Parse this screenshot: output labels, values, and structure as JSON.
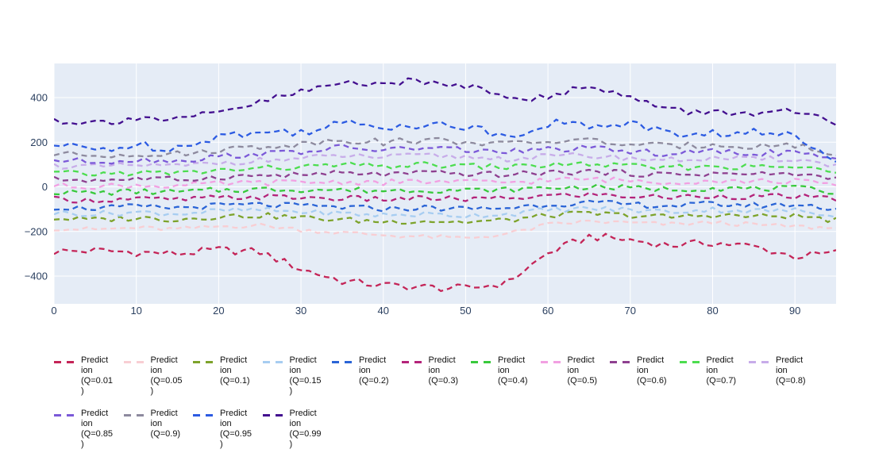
{
  "chart_data": {
    "type": "line",
    "title": "",
    "xlabel": "",
    "ylabel": "",
    "line_style": "dash",
    "plot_bg_color": "#e5ecf6",
    "grid_color": "#ffffff",
    "tick_label_color": "#2a3f5f",
    "legend_text_color": "#111111",
    "x_range": [
      0,
      95
    ],
    "y_range": [
      -524,
      553
    ],
    "x_tick_values": [
      0,
      10,
      20,
      30,
      40,
      50,
      60,
      70,
      80,
      90
    ],
    "x_tick_labels": [
      "0",
      "10",
      "20",
      "30",
      "40",
      "50",
      "60",
      "70",
      "80",
      "90"
    ],
    "y_tick_values": [
      400,
      200,
      0,
      -200,
      -400
    ],
    "y_tick_labels": [
      "400",
      "200",
      "0",
      "−200",
      "−400"
    ],
    "anchor_x_step": 5,
    "legend_row_split": 11,
    "series": [
      {
        "name": "Prediction (Q=0.01)",
        "label_lines": [
          "Predict",
          "ion",
          "(Q=0.01",
          ")"
        ],
        "color": "#c42457",
        "noise": 18,
        "anchors": [
          -290,
          -286,
          -293,
          -300,
          -283,
          -292,
          -368,
          -422,
          -441,
          -450,
          -456,
          -430,
          -298,
          -222,
          -238,
          -262,
          -250,
          -268,
          -312,
          -296
        ]
      },
      {
        "name": "Prediction (Q=0.05)",
        "label_lines": [
          "Predict",
          "ion",
          "(Q=0.05",
          ")"
        ],
        "color": "#f8ced3",
        "noise": 10,
        "anchors": [
          -186,
          -191,
          -184,
          -190,
          -178,
          -172,
          -192,
          -206,
          -216,
          -224,
          -230,
          -212,
          -170,
          -155,
          -162,
          -168,
          -160,
          -170,
          -178,
          -186
        ]
      },
      {
        "name": "Prediction (Q=0.1)",
        "label_lines": [
          "Predict",
          "ion",
          "(Q=0.1)"
        ],
        "color": "#7da32b",
        "noise": 13,
        "anchors": [
          -141,
          -148,
          -139,
          -146,
          -132,
          -128,
          -138,
          -148,
          -156,
          -152,
          -158,
          -150,
          -128,
          -120,
          -128,
          -136,
          -126,
          -133,
          -130,
          -150
        ]
      },
      {
        "name": "Prediction (Q=0.15)",
        "label_lines": [
          "Predict",
          "ion",
          "(Q=0.15",
          ")"
        ],
        "color": "#a7cdf1",
        "noise": 13,
        "anchors": [
          -116,
          -122,
          -114,
          -120,
          -108,
          -104,
          -112,
          -120,
          -127,
          -123,
          -128,
          -122,
          -104,
          -97,
          -104,
          -111,
          -102,
          -108,
          -106,
          -124
        ]
      },
      {
        "name": "Prediction (Q=0.2)",
        "label_lines": [
          "Predict",
          "ion",
          "(Q=0.2)"
        ],
        "color": "#2a64d6",
        "noise": 13,
        "anchors": [
          -91,
          -96,
          -89,
          -94,
          -84,
          -80,
          -86,
          -92,
          -98,
          -94,
          -99,
          -94,
          -78,
          -72,
          -79,
          -85,
          -77,
          -83,
          -80,
          -97
        ]
      },
      {
        "name": "Prediction (Q=0.3)",
        "label_lines": [
          "Predict",
          "ion",
          "(Q=0.3)"
        ],
        "color": "#b4237a",
        "noise": 13,
        "anchors": [
          -56,
          -60,
          -54,
          -58,
          -49,
          -45,
          -48,
          -52,
          -56,
          -52,
          -56,
          -52,
          -40,
          -35,
          -42,
          -47,
          -40,
          -45,
          -42,
          -58
        ]
      },
      {
        "name": "Prediction (Q=0.4)",
        "label_lines": [
          "Predict",
          "ion",
          "(Q=0.4)"
        ],
        "color": "#38c93c",
        "noise": 13,
        "anchors": [
          -23,
          -27,
          -21,
          -24,
          -15,
          -11,
          -12,
          -14,
          -17,
          -13,
          -16,
          -14,
          -4,
          0,
          -6,
          -11,
          -5,
          -9,
          -7,
          -22
        ]
      },
      {
        "name": "Prediction (Q=0.5)",
        "label_lines": [
          "Predict",
          "ion",
          "(Q=0.5)"
        ],
        "color": "#f2a0e2",
        "noise": 13,
        "anchors": [
          6,
          2,
          7,
          4,
          14,
          18,
          20,
          22,
          20,
          23,
          21,
          20,
          30,
          34,
          28,
          22,
          28,
          24,
          26,
          9
        ]
      },
      {
        "name": "Prediction (Q=0.6)",
        "label_lines": [
          "Predict",
          "ion",
          "(Q=0.6)"
        ],
        "color": "#8e4090",
        "noise": 13,
        "anchors": [
          34,
          30,
          36,
          32,
          44,
          50,
          54,
          61,
          56,
          61,
          58,
          54,
          64,
          68,
          60,
          54,
          60,
          56,
          58,
          37
        ]
      },
      {
        "name": "Prediction (Q=0.7)",
        "label_lines": [
          "Predict",
          "ion",
          "(Q=0.7)"
        ],
        "color": "#4cdd4f",
        "noise": 13,
        "anchors": [
          62,
          57,
          64,
          60,
          74,
          82,
          88,
          98,
          92,
          98,
          94,
          88,
          98,
          102,
          92,
          85,
          92,
          88,
          90,
          63
        ]
      },
      {
        "name": "Prediction (Q=0.8)",
        "label_lines": [
          "Predict",
          "ion",
          "(Q=0.8)"
        ],
        "color": "#c7ace9",
        "noise": 13,
        "anchors": [
          95,
          89,
          97,
          92,
          108,
          118,
          126,
          140,
          132,
          140,
          134,
          126,
          136,
          140,
          128,
          120,
          128,
          122,
          126,
          93
        ]
      },
      {
        "name": "Prediction (Q=0.85)",
        "label_lines": [
          "Predict",
          "ion",
          "(Q=0.85",
          ")"
        ],
        "color": "#7b59d8",
        "noise": 14,
        "anchors": [
          120,
          113,
          122,
          117,
          136,
          148,
          158,
          176,
          165,
          174,
          166,
          156,
          168,
          172,
          158,
          148,
          158,
          151,
          155,
          117
        ]
      },
      {
        "name": "Prediction (Q=0.9)",
        "label_lines": [
          "Predict",
          "ion",
          "(Q=0.9)"
        ],
        "color": "#8d8a9e",
        "noise": 15,
        "anchors": [
          148,
          140,
          150,
          145,
          166,
          181,
          192,
          213,
          200,
          210,
          202,
          190,
          204,
          208,
          190,
          180,
          192,
          182,
          188,
          141
        ]
      },
      {
        "name": "Prediction (Q=0.95)",
        "label_lines": [
          "Predict",
          "ion",
          "(Q=0.95",
          ")"
        ],
        "color": "#2c5be2",
        "noise": 22,
        "anchors": [
          185,
          168,
          186,
          176,
          232,
          240,
          250,
          282,
          272,
          284,
          268,
          228,
          286,
          272,
          290,
          232,
          240,
          242,
          226,
          134
        ]
      },
      {
        "name": "Prediction (Q=0.99)",
        "label_lines": [
          "Predict",
          "ion",
          "(Q=0.99",
          ")"
        ],
        "color": "#430f8f",
        "noise": 18,
        "anchors": [
          300,
          287,
          312,
          297,
          332,
          378,
          425,
          466,
          471,
          467,
          456,
          414,
          392,
          462,
          398,
          342,
          332,
          334,
          332,
          286
        ]
      }
    ]
  }
}
